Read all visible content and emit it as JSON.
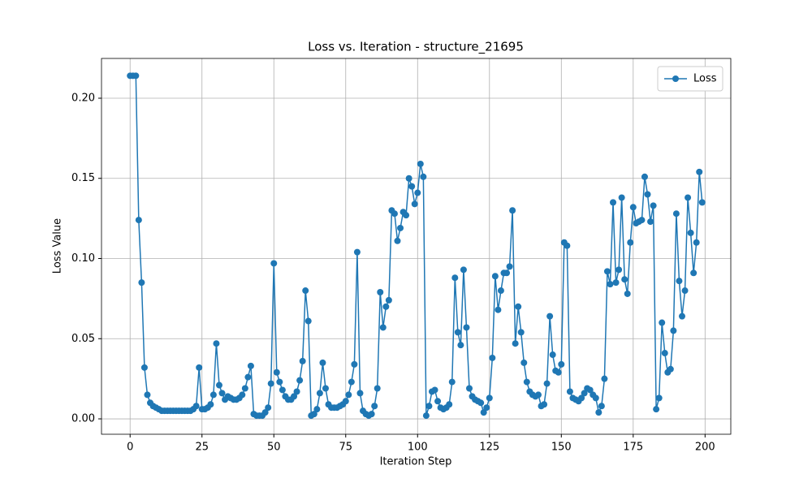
{
  "chart_data": {
    "type": "line",
    "title": "Loss vs. Iteration - structure_21695",
    "x_label": "Iteration Step",
    "y_label": "Loss Value",
    "x": [
      0,
      1,
      2,
      3,
      4,
      5,
      6,
      7,
      8,
      9,
      10,
      11,
      12,
      13,
      14,
      15,
      16,
      17,
      18,
      19,
      20,
      21,
      22,
      23,
      24,
      25,
      26,
      27,
      28,
      29,
      30,
      31,
      32,
      33,
      34,
      35,
      36,
      37,
      38,
      39,
      40,
      41,
      42,
      43,
      44,
      45,
      46,
      47,
      48,
      49,
      50,
      51,
      52,
      53,
      54,
      55,
      56,
      57,
      58,
      59,
      60,
      61,
      62,
      63,
      64,
      65,
      66,
      67,
      68,
      69,
      70,
      71,
      72,
      73,
      74,
      75,
      76,
      77,
      78,
      79,
      80,
      81,
      82,
      83,
      84,
      85,
      86,
      87,
      88,
      89,
      90,
      91,
      92,
      93,
      94,
      95,
      96,
      97,
      98,
      99,
      100,
      101,
      102,
      103,
      104,
      105,
      106,
      107,
      108,
      109,
      110,
      111,
      112,
      113,
      114,
      115,
      116,
      117,
      118,
      119,
      120,
      121,
      122,
      123,
      124,
      125,
      126,
      127,
      128,
      129,
      130,
      131,
      132,
      133,
      134,
      135,
      136,
      137,
      138,
      139,
      140,
      141,
      142,
      143,
      144,
      145,
      146,
      147,
      148,
      149,
      150,
      151,
      152,
      153,
      154,
      155,
      156,
      157,
      158,
      159,
      160,
      161,
      162,
      163,
      164,
      165,
      166,
      167,
      168,
      169,
      170,
      171,
      172,
      173,
      174,
      175,
      176,
      177,
      178,
      179,
      180,
      181,
      182,
      183,
      184,
      185,
      186,
      187,
      188,
      189,
      190,
      191,
      192,
      193,
      194,
      195,
      196,
      197,
      198,
      199
    ],
    "series": [
      {
        "name": "Loss",
        "color": "#1f77b4",
        "values": [
          0.214,
          0.214,
          0.214,
          0.124,
          0.085,
          0.032,
          0.015,
          0.01,
          0.008,
          0.007,
          0.006,
          0.005,
          0.005,
          0.005,
          0.005,
          0.005,
          0.005,
          0.005,
          0.005,
          0.005,
          0.005,
          0.005,
          0.006,
          0.008,
          0.032,
          0.006,
          0.006,
          0.007,
          0.009,
          0.015,
          0.047,
          0.021,
          0.016,
          0.012,
          0.014,
          0.013,
          0.012,
          0.012,
          0.013,
          0.015,
          0.019,
          0.026,
          0.033,
          0.003,
          0.002,
          0.002,
          0.002,
          0.004,
          0.007,
          0.022,
          0.097,
          0.029,
          0.023,
          0.018,
          0.014,
          0.012,
          0.012,
          0.014,
          0.017,
          0.024,
          0.036,
          0.08,
          0.061,
          0.002,
          0.003,
          0.006,
          0.016,
          0.035,
          0.019,
          0.009,
          0.007,
          0.007,
          0.007,
          0.008,
          0.009,
          0.011,
          0.015,
          0.023,
          0.034,
          0.104,
          0.016,
          0.005,
          0.003,
          0.002,
          0.003,
          0.008,
          0.019,
          0.079,
          0.057,
          0.07,
          0.074,
          0.13,
          0.128,
          0.111,
          0.119,
          0.129,
          0.127,
          0.15,
          0.145,
          0.134,
          0.141,
          0.159,
          0.151,
          0.002,
          0.008,
          0.017,
          0.018,
          0.011,
          0.007,
          0.006,
          0.007,
          0.009,
          0.023,
          0.088,
          0.054,
          0.046,
          0.093,
          0.057,
          0.019,
          0.014,
          0.012,
          0.011,
          0.01,
          0.004,
          0.007,
          0.013,
          0.038,
          0.089,
          0.068,
          0.08,
          0.091,
          0.091,
          0.095,
          0.13,
          0.047,
          0.07,
          0.054,
          0.035,
          0.023,
          0.017,
          0.015,
          0.014,
          0.015,
          0.008,
          0.009,
          0.022,
          0.064,
          0.04,
          0.03,
          0.029,
          0.034,
          0.11,
          0.108,
          0.017,
          0.013,
          0.012,
          0.011,
          0.013,
          0.016,
          0.019,
          0.018,
          0.015,
          0.013,
          0.004,
          0.008,
          0.025,
          0.092,
          0.084,
          0.135,
          0.085,
          0.093,
          0.138,
          0.087,
          0.078,
          0.11,
          0.132,
          0.122,
          0.123,
          0.124,
          0.151,
          0.14,
          0.123,
          0.133,
          0.006,
          0.013,
          0.06,
          0.041,
          0.029,
          0.031,
          0.055,
          0.128,
          0.086,
          0.064,
          0.08,
          0.138,
          0.116,
          0.091,
          0.11,
          0.154,
          0.135
        ]
      }
    ],
    "xlim": [
      -9.95,
      208.95
    ],
    "ylim": [
      -0.0096,
      0.2248
    ],
    "xticks": [
      0,
      25,
      50,
      75,
      100,
      125,
      150,
      175,
      200
    ],
    "yticks": [
      {
        "value": 0,
        "label": "0.00"
      },
      {
        "value": 0.05,
        "label": "0.05"
      },
      {
        "value": 0.1,
        "label": "0.10"
      },
      {
        "value": 0.15,
        "label": "0.15"
      },
      {
        "value": 0.2,
        "label": "0.20"
      }
    ],
    "grid": true,
    "legend": "upper right"
  }
}
